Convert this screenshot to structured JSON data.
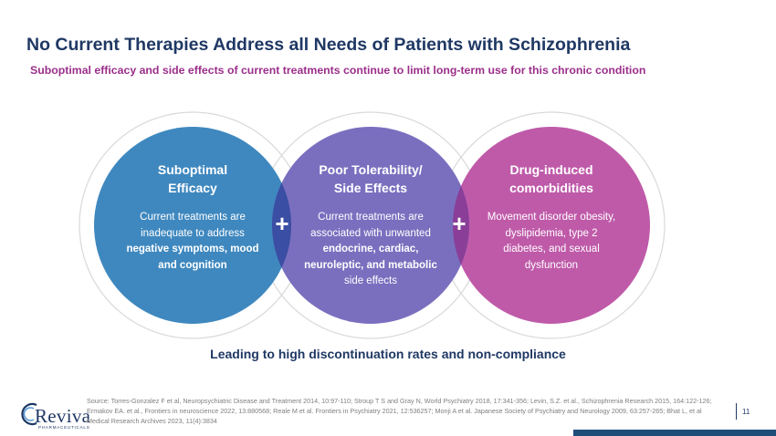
{
  "slide": {
    "title": "No Current Therapies Address all Needs of Patients with Schizophrenia",
    "subtitle": "Suboptimal efficacy and side effects of current treatments continue to limit long-term use for this chronic condition",
    "conclusion": "Leading to high discontinuation rates and non-compliance",
    "page_number": "11"
  },
  "circles": [
    {
      "title_line1": "Suboptimal",
      "title_line2": "Efficacy",
      "body_pre": "Current treatments are inadequate to address ",
      "body_bold": "negative symptoms, mood and cognition",
      "color": "#3f88bf"
    },
    {
      "title_line1": "Poor Tolerability/",
      "title_line2": "Side Effects",
      "body_pre": "Current treatments are associated with unwanted ",
      "body_bold": "endocrine, cardiac, neuroleptic, and metabolic",
      "body_post": " side effects",
      "color": "#7a6fbf"
    },
    {
      "title_line1": "Drug-induced",
      "title_line2": "comorbidities",
      "body_pre": "Movement disorder obesity, dyslipidemia, type 2 diabetes, and sexual dysfunction",
      "color": "#bf5aa9"
    }
  ],
  "plus_symbol": "+",
  "source_text": "Source: Torres-Gonzalez F et al, Neuropsychiatric Disease and Treatment 2014, 10:97-110; Stroup T S and Gray N, World Psychiatry 2018, 17:341-356; Levin, S.Z. et al., Schizophrenia Research 2015, 164:122-126; Ermakov EA. et al., Frontiers in neuroscience 2022, 13:880568; Reale M et al. Frontiers in Psychiatry 2021, 12:536257; Monji A et al. Japanese Society of Psychiatry and Neurology 2009, 63:257-265; Bhat L, et al Medical Research Archives 2023, 11(4):3834",
  "logo": {
    "name": "Reviva",
    "tagline": "PHARMACEUTICALS"
  },
  "colors": {
    "title": "#1f3864",
    "subtitle": "#9b2f8a",
    "overlap_left": "#3a4ea3",
    "overlap_right": "#8a3e98"
  }
}
